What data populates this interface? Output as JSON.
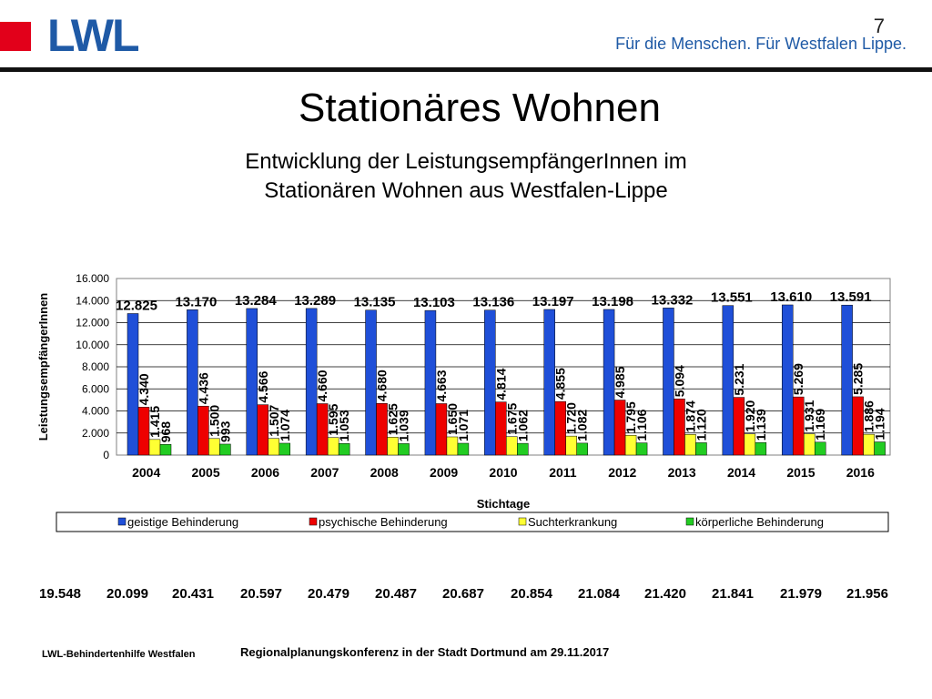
{
  "header": {
    "logo": "LWL",
    "slogan": "Für die Menschen. Für Westfalen Lippe.",
    "page_number": "7",
    "accent_red": "#e2001a",
    "brand_blue": "#1f5aa6"
  },
  "title": "Stationäres Wohnen",
  "subtitle_line1": "Entwicklung der LeistungsempfängerInnen im",
  "subtitle_line2": "Stationären Wohnen aus Westfalen-Lippe",
  "chart_data": {
    "type": "bar",
    "ylabel": "LeistungsempfängerInnen",
    "xlabel": "Stichtage",
    "ylim": [
      0,
      16000
    ],
    "yticks": [
      "0",
      "2.000",
      "4.000",
      "6.000",
      "8.000",
      "10.000",
      "12.000",
      "14.000",
      "16.000"
    ],
    "grid": true,
    "legend_position": "bottom",
    "categories": [
      "2004",
      "2005",
      "2006",
      "2007",
      "2008",
      "2009",
      "2010",
      "2011",
      "2012",
      "2013",
      "2014",
      "2015",
      "2016"
    ],
    "series": [
      {
        "name": "geistige Behinderung",
        "color": "#1f4fd8",
        "values": [
          12825,
          13170,
          13284,
          13289,
          13135,
          13103,
          13136,
          13197,
          13198,
          13332,
          13551,
          13610,
          13591
        ],
        "labels": [
          "12.825",
          "13.170",
          "13.284",
          "13.289",
          "13.135",
          "13.103",
          "13.136",
          "13.197",
          "13.198",
          "13.332",
          "13.551",
          "13.610",
          "13.591"
        ]
      },
      {
        "name": "psychische Behinderung",
        "color": "#ee0000",
        "values": [
          4340,
          4436,
          4566,
          4660,
          4680,
          4663,
          4814,
          4855,
          4985,
          5094,
          5231,
          5269,
          5285
        ],
        "labels": [
          "4.340",
          "4.436",
          "4.566",
          "4.660",
          "4.680",
          "4.663",
          "4.814",
          "4.855",
          "4.985",
          "5.094",
          "5.231",
          "5.269",
          "5.285"
        ]
      },
      {
        "name": "Suchterkrankung",
        "color": "#ffff33",
        "values": [
          1415,
          1500,
          1507,
          1595,
          1625,
          1650,
          1675,
          1720,
          1795,
          1874,
          1920,
          1931,
          1886
        ],
        "labels": [
          "1.415",
          "1.500",
          "1.507",
          "1.595",
          "1.625",
          "1.650",
          "1.675",
          "1.720",
          "1.795",
          "1.874",
          "1.920",
          "1.931",
          "1.886"
        ]
      },
      {
        "name": "körperliche Behinderung",
        "color": "#22cc22",
        "values": [
          968,
          993,
          1074,
          1053,
          1039,
          1071,
          1062,
          1082,
          1106,
          1120,
          1139,
          1169,
          1194
        ],
        "labels": [
          "968",
          "993",
          "1.074",
          "1.053",
          "1.039",
          "1.071",
          "1.062",
          "1.082",
          "1.106",
          "1.120",
          "1.139",
          "1.169",
          "1.194"
        ]
      }
    ]
  },
  "totals": [
    "19.548",
    "20.099",
    "20.431",
    "20.597",
    "20.479",
    "20.487",
    "20.687",
    "20.854",
    "21.084",
    "21.420",
    "21.841",
    "21.979",
    "21.956"
  ],
  "footer": {
    "left": "LWL-Behindertenhilfe Westfalen",
    "center": "Regionalplanungskonferenz in der Stadt Dortmund am 29.11.2017"
  }
}
